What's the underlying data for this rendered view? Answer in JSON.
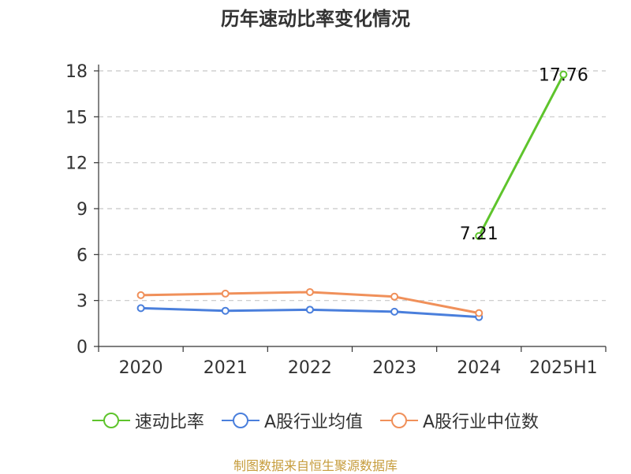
{
  "chart_data": {
    "type": "line",
    "title": "历年速动比率变化情况",
    "categories": [
      "2020",
      "2021",
      "2022",
      "2023",
      "2024",
      "2025H1"
    ],
    "ylim": [
      0,
      18
    ],
    "yticks": [
      0,
      3,
      6,
      9,
      12,
      15,
      18
    ],
    "xlabel": "",
    "ylabel": "",
    "grid": true,
    "legend_position": "bottom",
    "series": [
      {
        "name": "速动比率",
        "color": "#5ec42c",
        "values": [
          null,
          null,
          null,
          null,
          7.21,
          17.76
        ],
        "labels": [
          null,
          null,
          null,
          null,
          "7.21",
          "17.76"
        ]
      },
      {
        "name": "A股行业均值",
        "color": "#4a7fdc",
        "values": [
          2.5,
          2.33,
          2.4,
          2.27,
          1.92,
          null
        ]
      },
      {
        "name": "A股行业中位数",
        "color": "#f0905a",
        "values": [
          3.35,
          3.45,
          3.55,
          3.25,
          2.18,
          null
        ]
      }
    ]
  },
  "source_text": "制图数据来自恒生聚源数据库"
}
